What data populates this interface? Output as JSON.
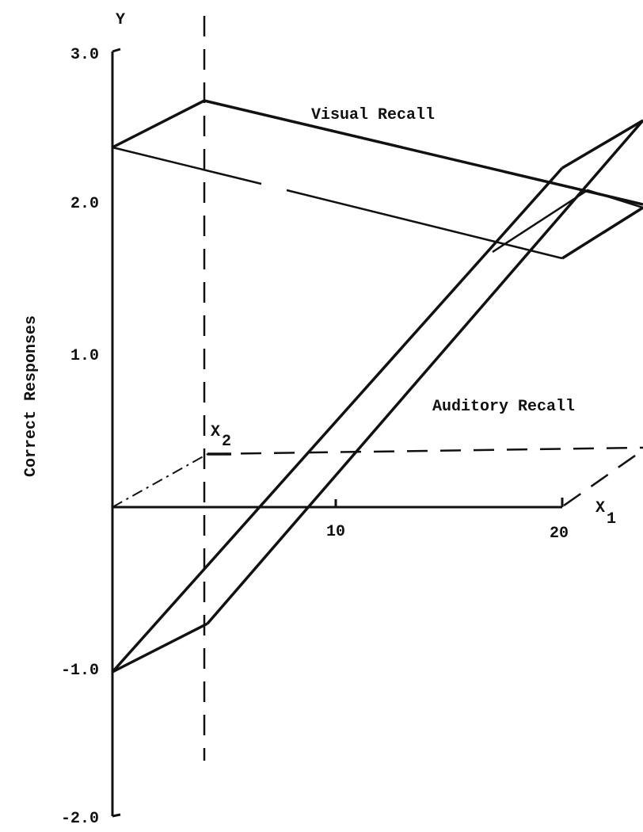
{
  "y_axis": {
    "name": "Y",
    "label": "Correct Responses",
    "ticks": [
      "3.0",
      "2.0",
      "1.0",
      "-1.0",
      "-2.0"
    ]
  },
  "x1_axis": {
    "name": "X",
    "subscript": "1",
    "ticks": [
      "10",
      "20"
    ]
  },
  "x2_axis": {
    "name": "X",
    "subscript": "2"
  },
  "planes": [
    "Visual Recall",
    "Auditory Recall"
  ]
}
